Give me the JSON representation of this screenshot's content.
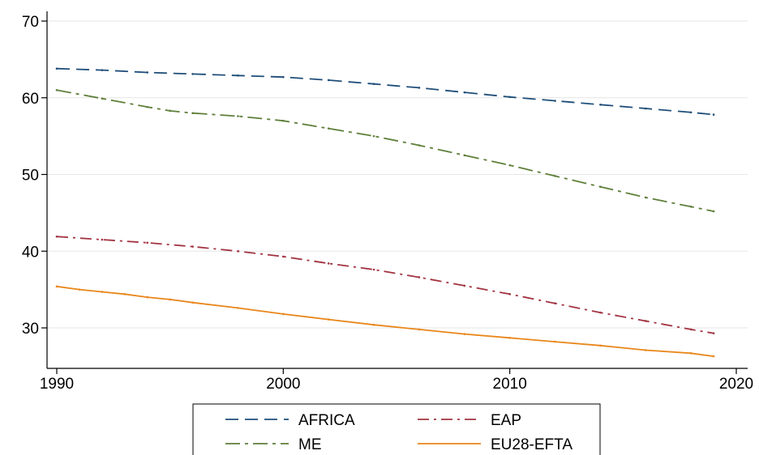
{
  "chart_data": {
    "type": "line",
    "title": "",
    "xlabel": "",
    "ylabel": "",
    "xlim": [
      1990,
      2020
    ],
    "ylim": [
      25,
      72
    ],
    "x_ticks": [
      1990,
      2000,
      2010,
      2020
    ],
    "y_ticks": [
      30,
      40,
      50,
      60,
      70
    ],
    "grid": "horizontal",
    "legend_position": "bottom",
    "series": [
      {
        "name": "AFRICA",
        "color": "#1f4e79",
        "dash": "dashed",
        "x": [
          1990,
          1992,
          1994,
          1996,
          1998,
          2000,
          2002,
          2004,
          2006,
          2008,
          2010,
          2012,
          2014,
          2016,
          2018,
          2019
        ],
        "y": [
          63.8,
          63.6,
          63.3,
          63.1,
          62.9,
          62.7,
          62.3,
          61.8,
          61.3,
          60.7,
          60.1,
          59.6,
          59.1,
          58.6,
          58.1,
          57.8
        ]
      },
      {
        "name": "EAP",
        "color": "#a23341",
        "dash": "dashdot",
        "x": [
          1990,
          1992,
          1994,
          1996,
          1998,
          2000,
          2002,
          2004,
          2006,
          2008,
          2010,
          2012,
          2014,
          2016,
          2018,
          2019
        ],
        "y": [
          41.9,
          41.5,
          41.1,
          40.6,
          40.0,
          39.3,
          38.4,
          37.6,
          36.6,
          35.5,
          34.4,
          33.2,
          32.0,
          30.9,
          29.8,
          29.3
        ]
      },
      {
        "name": "ME",
        "color": "#5f7f3a",
        "dash": "dashdotlong",
        "x": [
          1990,
          1992,
          1994,
          1995,
          1996,
          1998,
          2000,
          2002,
          2004,
          2006,
          2008,
          2010,
          2012,
          2014,
          2016,
          2018,
          2019
        ],
        "y": [
          61.0,
          59.9,
          58.8,
          58.3,
          58.0,
          57.6,
          57.0,
          56.0,
          55.0,
          53.8,
          52.5,
          51.2,
          49.8,
          48.4,
          47.0,
          45.8,
          45.2
        ]
      },
      {
        "name": "EU28-EFTA",
        "color": "#e8861a",
        "dash": "solid",
        "x": [
          1990,
          1991,
          1992,
          1993,
          1994,
          1995,
          1996,
          1998,
          2000,
          2002,
          2004,
          2006,
          2008,
          2010,
          2012,
          2014,
          2016,
          2018,
          2019
        ],
        "y": [
          35.4,
          35.0,
          34.7,
          34.4,
          34.0,
          33.7,
          33.3,
          32.6,
          31.8,
          31.1,
          30.4,
          29.8,
          29.2,
          28.7,
          28.2,
          27.7,
          27.1,
          26.7,
          26.3
        ]
      }
    ],
    "legend_order": [
      "AFRICA",
      "EAP",
      "ME",
      "EU28-EFTA"
    ]
  }
}
